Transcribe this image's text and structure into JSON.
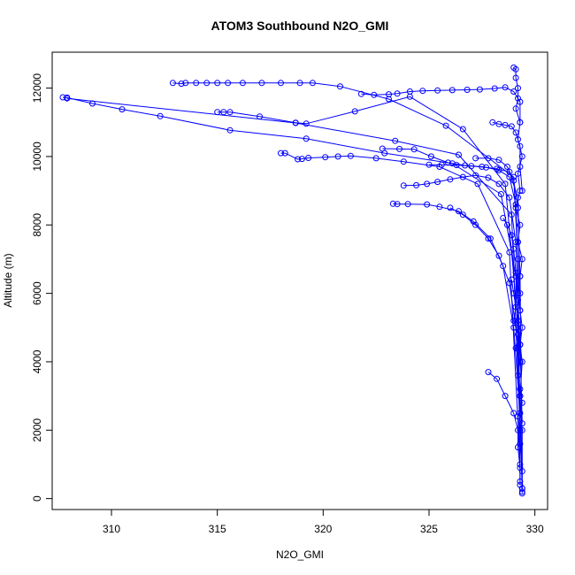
{
  "chart_data": {
    "type": "line",
    "title": "ATOM3 Southbound N2O_GMI",
    "xlabel": "N2O_GMI",
    "ylabel": "Altitude (m)",
    "xlim": [
      307.2,
      330.6
    ],
    "ylim": [
      -320,
      13050
    ],
    "x_ticks": [
      310,
      315,
      320,
      325,
      330
    ],
    "y_ticks": [
      0,
      2000,
      4000,
      6000,
      8000,
      10000,
      12000
    ],
    "grid": false,
    "color": "#0000ff",
    "marker": "open-circle",
    "series": [
      {
        "x": [
          312.9,
          313.3,
          313.5,
          314.0,
          314.5,
          315.0,
          315.5,
          316.2,
          317.1,
          318.0,
          318.9,
          319.5,
          320.8,
          323.1,
          325.8,
          329.0,
          329.2,
          329.3
        ],
        "y": [
          12150,
          12130,
          12150,
          12150,
          12150,
          12150,
          12150,
          12150,
          12150,
          12150,
          12150,
          12150,
          12050,
          11680,
          10900,
          9400,
          7000,
          500
        ]
      },
      {
        "x": [
          307.7,
          307.9,
          309.1,
          310.5,
          312.3,
          315.6,
          319.2,
          322.9,
          326.1,
          328.4,
          329.1,
          329.4
        ],
        "y": [
          11730,
          11720,
          11550,
          11380,
          11180,
          10770,
          10520,
          10100,
          9800,
          8900,
          6500,
          300
        ]
      },
      {
        "x": [
          307.9,
          318.7,
          323.4,
          326.4,
          328.9,
          329.3
        ],
        "y": [
          11700,
          10980,
          10460,
          10050,
          8300,
          2000
        ]
      },
      {
        "x": [
          315.0,
          315.3,
          315.6,
          317.0,
          318.7,
          319.2,
          321.5,
          324.1,
          326.6,
          328.6,
          329.2,
          329.4
        ],
        "y": [
          11300,
          11300,
          11300,
          11170,
          10990,
          10960,
          11320,
          11750,
          10800,
          9200,
          5200,
          200
        ]
      },
      {
        "x": [
          318.0,
          318.2,
          318.8,
          319.0,
          319.3,
          320.1,
          320.7,
          321.3,
          322.5,
          323.8,
          325.5,
          327.3,
          328.8,
          329.3
        ],
        "y": [
          10100,
          10100,
          9920,
          9930,
          9960,
          9980,
          10000,
          10020,
          9950,
          9850,
          9700,
          9200,
          7200,
          1000
        ]
      },
      {
        "x": [
          321.8,
          322.4,
          323.1,
          323.5,
          324.1,
          324.7,
          325.4,
          326.1,
          326.8,
          327.4,
          328.1,
          328.6,
          329.0,
          329.3,
          329.3
        ],
        "y": [
          11830,
          11800,
          11820,
          11840,
          11900,
          11920,
          11930,
          11940,
          11950,
          11960,
          11990,
          12020,
          11900,
          11600,
          11000
        ]
      },
      {
        "x": [
          323.3,
          323.5,
          324.0,
          324.9,
          325.5,
          326.4,
          327.1,
          327.9,
          328.5,
          329.0,
          329.3
        ],
        "y": [
          8620,
          8610,
          8610,
          8600,
          8530,
          8400,
          8100,
          7600,
          6800,
          5000,
          2500
        ]
      },
      {
        "x": [
          323.8,
          324.4,
          324.9,
          325.4,
          326.0,
          326.6,
          327.2,
          327.8,
          328.3,
          328.8,
          329.1,
          329.3
        ],
        "y": [
          9150,
          9160,
          9200,
          9260,
          9330,
          9400,
          9450,
          9380,
          9200,
          8800,
          7500,
          4000
        ]
      },
      {
        "x": [
          322.8,
          323.6,
          324.3,
          325.1,
          325.9,
          326.7,
          327.5,
          328.2,
          328.8,
          329.2,
          329.3
        ],
        "y": [
          10230,
          10220,
          10210,
          10000,
          9820,
          9740,
          9700,
          9640,
          9550,
          8800,
          6000
        ]
      },
      {
        "x": [
          325.0,
          325.6,
          326.3,
          327.0,
          327.7,
          328.3,
          328.8,
          329.1,
          329.3
        ],
        "y": [
          9760,
          9760,
          9750,
          9720,
          9680,
          9600,
          9400,
          8600,
          5500
        ]
      },
      {
        "x": [
          326.0,
          326.6,
          327.2,
          327.8,
          328.3,
          328.8,
          329.1,
          329.3
        ],
        "y": [
          8500,
          8300,
          8000,
          7600,
          7100,
          6300,
          5000,
          3000
        ]
      },
      {
        "x": [
          327.8,
          328.2,
          328.6,
          329.0,
          329.2,
          329.2,
          329.3,
          329.3
        ],
        "y": [
          3700,
          3500,
          3000,
          2500,
          2000,
          1500,
          900,
          400
        ]
      },
      {
        "x": [
          328.0,
          328.3,
          328.6,
          328.9,
          329.1,
          329.3,
          329.3,
          329.4
        ],
        "y": [
          11000,
          10950,
          10920,
          10880,
          10700,
          10300,
          9700,
          9000
        ]
      },
      {
        "x": [
          329.0,
          329.1,
          329.1,
          329.2,
          329.2,
          329.1,
          329.3,
          329.2,
          329.4,
          329.2,
          329.3,
          329.1,
          329.3,
          329.2,
          329.4,
          329.3,
          329.2,
          329.3,
          329.4,
          329.3,
          329.4,
          329.3,
          329.4,
          329.4
        ],
        "y": [
          12600,
          12550,
          12300,
          12000,
          11700,
          11400,
          11000,
          10500,
          10000,
          9500,
          9000,
          8500,
          8000,
          7500,
          7000,
          6500,
          6000,
          5500,
          5000,
          4500,
          4000,
          3000,
          2000,
          150
        ]
      },
      {
        "x": [
          328.5,
          328.7,
          328.9,
          329.0,
          329.1,
          329.2,
          329.3,
          329.4
        ],
        "y": [
          8200,
          8000,
          7700,
          7300,
          6600,
          5800,
          4500,
          2200
        ]
      },
      {
        "x": [
          327.2,
          327.8,
          328.3,
          328.7,
          329.0,
          329.2,
          329.3,
          329.4
        ],
        "y": [
          9950,
          9950,
          9900,
          9700,
          9300,
          8500,
          6500,
          300
        ]
      },
      {
        "x": [
          328.9,
          329.0,
          329.1,
          329.0,
          329.2,
          329.1,
          329.3,
          329.2,
          329.3,
          329.4,
          329.2,
          329.3,
          329.4
        ],
        "y": [
          6400,
          6000,
          5600,
          5200,
          4800,
          4400,
          4000,
          3600,
          3200,
          2800,
          2400,
          1600,
          800
        ]
      }
    ]
  }
}
